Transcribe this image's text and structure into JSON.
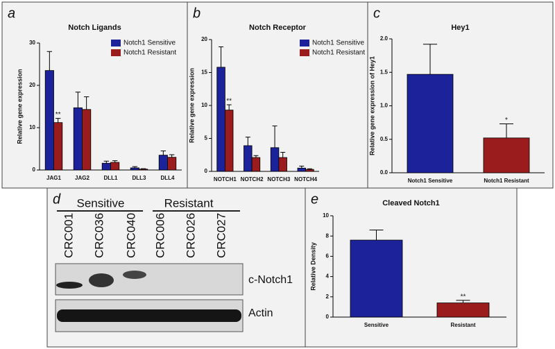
{
  "chart_data": [
    {
      "panel": "a",
      "type": "bar",
      "title": "Notch Ligands",
      "y_label": "Relative gene expression",
      "categories": [
        "JAG1",
        "JAG2",
        "DLL1",
        "DLL3",
        "DLL4"
      ],
      "series": [
        {
          "name": "Notch1 Sensitive",
          "color": "#1c2299",
          "values": [
            23.5,
            14.7,
            1.6,
            0.5,
            3.5
          ],
          "errors": [
            4.5,
            3.7,
            0.5,
            0.3,
            1.0
          ],
          "significance": [
            null,
            null,
            null,
            null,
            null
          ]
        },
        {
          "name": "Notch1 Resistant",
          "color": "#9b1c1c",
          "values": [
            11.2,
            14.3,
            1.8,
            0.2,
            3.0
          ],
          "errors": [
            1.0,
            3.0,
            0.4,
            0.1,
            0.6
          ],
          "significance": [
            "**",
            null,
            null,
            null,
            null
          ]
        }
      ],
      "ylim": [
        0,
        30
      ],
      "yticks": [
        0,
        10,
        20,
        30
      ],
      "legend": "upper right"
    },
    {
      "panel": "b",
      "type": "bar",
      "title": "Notch Receptor",
      "y_label": "Relative gene expression",
      "categories": [
        "NOTCH1",
        "NOTCH2",
        "NOTCH3",
        "NOTCH4"
      ],
      "series": [
        {
          "name": "Notch1 Sensitive",
          "color": "#1c2299",
          "values": [
            15.8,
            3.9,
            3.6,
            0.5
          ],
          "errors": [
            3.1,
            1.3,
            3.3,
            0.3
          ],
          "significance": [
            null,
            null,
            null,
            null
          ]
        },
        {
          "name": "Notch1 Resistant",
          "color": "#9b1c1c",
          "values": [
            9.3,
            2.1,
            2.1,
            0.3
          ],
          "errors": [
            0.8,
            0.3,
            0.8,
            0.1
          ],
          "significance": [
            "**",
            null,
            null,
            null
          ]
        }
      ],
      "ylim": [
        0,
        20
      ],
      "yticks": [
        0,
        5,
        10,
        15,
        20
      ],
      "legend": "upper right"
    },
    {
      "panel": "c",
      "type": "bar",
      "title": "Hey1",
      "y_label": "Relative gene expression of Hey1",
      "categories": [
        "Notch1 Sensitive",
        "Notch1 Resistant"
      ],
      "values": [
        1.47,
        0.52
      ],
      "errors": [
        0.45,
        0.21
      ],
      "colors": [
        "#1c2299",
        "#9b1c1c"
      ],
      "significance": [
        null,
        "*"
      ],
      "ylim": [
        0,
        2
      ],
      "yticks": [
        {
          "value": 0,
          "label": "0.0"
        },
        0.5,
        {
          "value": 1,
          "label": "1.0"
        },
        1.5,
        {
          "value": 2,
          "label": "2.0"
        }
      ]
    },
    {
      "panel": "e",
      "type": "bar",
      "title": "Cleaved Notch1",
      "y_label": "Relative Density",
      "categories": [
        "Sensitive",
        "Resistant"
      ],
      "values": [
        7.6,
        1.4
      ],
      "errors": [
        1.0,
        0.25
      ],
      "colors": [
        "#1c2299",
        "#9b1c1c"
      ],
      "significance": [
        null,
        "**"
      ],
      "ylim": [
        0,
        10
      ],
      "yticks": [
        0,
        2,
        4,
        6,
        8,
        10
      ]
    }
  ],
  "blot": {
    "panel": "d",
    "groups": [
      "Sensitive",
      "Resistant"
    ],
    "lanes": [
      "CRC001",
      "CRC036",
      "CRC040",
      "CRC006",
      "CRC026",
      "CRC027"
    ],
    "bands": [
      "c-Notch1",
      "Actin"
    ]
  }
}
